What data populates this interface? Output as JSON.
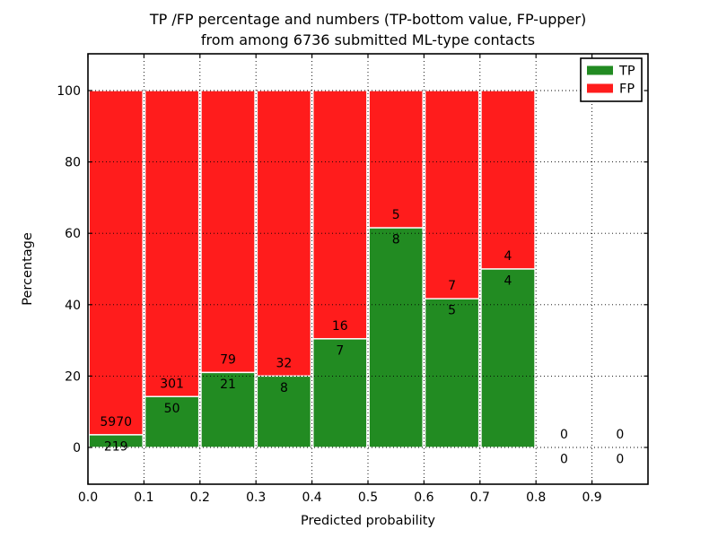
{
  "chart_data": {
    "type": "bar",
    "stacked": true,
    "title_line1": "TP /FP percentage and numbers (TP-bottom value, FP-upper)",
    "title_line2": "from among 6736 submitted ML-type contacts",
    "xlabel": "Predicted probability",
    "ylabel": "Percentage",
    "xlim": [
      0.0,
      1.0
    ],
    "ylim": [
      -10.5,
      110.5
    ],
    "x_tick_values": [
      0.0,
      0.1,
      0.2,
      0.3,
      0.4,
      0.5,
      0.6,
      0.7,
      0.8,
      0.9
    ],
    "x_tick_labels": [
      "0.0",
      "0.1",
      "0.2",
      "0.3",
      "0.4",
      "0.5",
      "0.6",
      "0.7",
      "0.8",
      "0.9"
    ],
    "y_tick_values": [
      0,
      20,
      40,
      60,
      80,
      100
    ],
    "y_tick_labels": [
      "0",
      "20",
      "40",
      "60",
      "80",
      "100"
    ],
    "grid": {
      "style": "dotted",
      "color": "#000000",
      "drawn_above_bars": true
    },
    "bin_width": 0.1,
    "bins": [
      {
        "x_start": 0.0,
        "x_end": 0.1,
        "tp": 219,
        "fp": 5970,
        "tp_percent": 3.5
      },
      {
        "x_start": 0.1,
        "x_end": 0.2,
        "tp": 50,
        "fp": 301,
        "tp_percent": 14.2
      },
      {
        "x_start": 0.2,
        "x_end": 0.3,
        "tp": 21,
        "fp": 79,
        "tp_percent": 21.0
      },
      {
        "x_start": 0.3,
        "x_end": 0.4,
        "tp": 8,
        "fp": 32,
        "tp_percent": 20.0
      },
      {
        "x_start": 0.4,
        "x_end": 0.5,
        "tp": 7,
        "fp": 16,
        "tp_percent": 30.4
      },
      {
        "x_start": 0.5,
        "x_end": 0.6,
        "tp": 8,
        "fp": 5,
        "tp_percent": 61.5
      },
      {
        "x_start": 0.6,
        "x_end": 0.7,
        "tp": 5,
        "fp": 7,
        "tp_percent": 41.7
      },
      {
        "x_start": 0.7,
        "x_end": 0.8,
        "tp": 4,
        "fp": 4,
        "tp_percent": 50.0
      },
      {
        "x_start": 0.8,
        "x_end": 0.9,
        "tp": 0,
        "fp": 0,
        "tp_percent": 0
      },
      {
        "x_start": 0.9,
        "x_end": 1.0,
        "tp": 0,
        "fp": 0,
        "tp_percent": 0
      }
    ],
    "series": [
      {
        "name": "TP",
        "color": "#228b22",
        "values": [
          219,
          50,
          21,
          8,
          7,
          8,
          5,
          4,
          0,
          0
        ]
      },
      {
        "name": "FP",
        "color": "#ff1c1c",
        "values": [
          5970,
          301,
          79,
          32,
          16,
          5,
          7,
          4,
          0,
          0
        ]
      }
    ],
    "legend": {
      "position": "upper-right",
      "entries": [
        {
          "label": "TP",
          "color": "#228b22"
        },
        {
          "label": "FP",
          "color": "#ff1c1c"
        }
      ]
    },
    "colors": {
      "background": "#ffffff",
      "text": "#000000",
      "bar_edge": "#ffffff"
    }
  }
}
